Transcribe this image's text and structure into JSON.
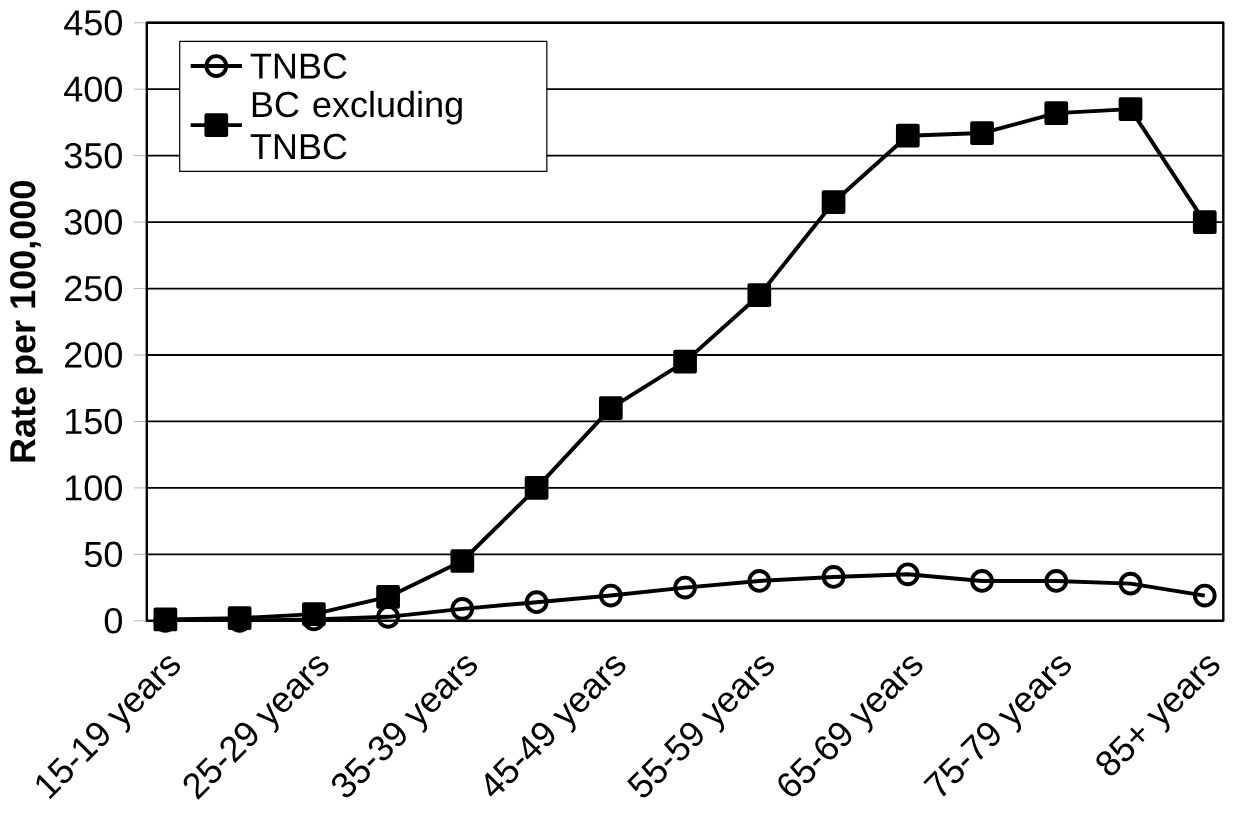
{
  "chart_data": {
    "type": "line",
    "ylabel": "Rate per 100,000",
    "categories": [
      "15-19 years",
      null,
      "25-29 years",
      null,
      "35-39 years",
      null,
      "45-49 years",
      null,
      "55-59 years",
      null,
      "65-69 years",
      null,
      "75-79 years",
      null,
      "85+ years"
    ],
    "series": [
      {
        "name": "TNBC",
        "color": "#000000",
        "marker": "circle",
        "values": [
          0,
          0,
          1,
          3,
          9,
          14,
          19,
          25,
          30,
          33,
          35,
          30,
          30,
          28,
          19
        ]
      },
      {
        "name": "BC excluding TNBC",
        "color": "#000000",
        "marker": "square",
        "values": [
          1,
          2,
          5,
          18,
          45,
          100,
          160,
          195,
          245,
          315,
          365,
          367,
          382,
          385,
          300
        ]
      }
    ],
    "ylim": [
      0,
      450
    ],
    "yticks": [
      0,
      50,
      100,
      150,
      200,
      250,
      300,
      350,
      400,
      450
    ],
    "grid": "y",
    "legend": "top left"
  }
}
